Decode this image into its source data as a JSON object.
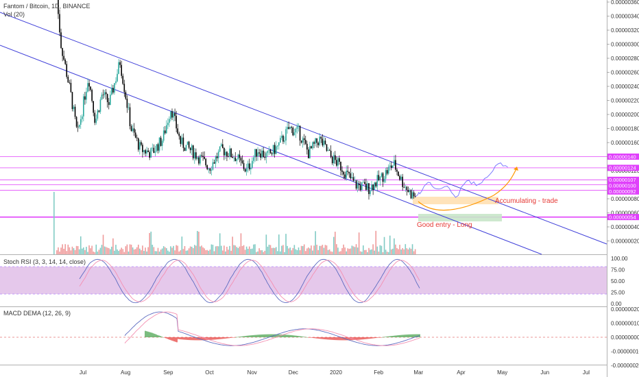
{
  "header": {
    "pair_title": "Fantom / Bitcoin, 1D, BINANCE",
    "vol_label": "Vol (20)"
  },
  "colors": {
    "up": "#26a69a",
    "down": "#000000",
    "channel": "#3f3fd9",
    "level_line": "#e040fb",
    "badge": "#e040fb",
    "annotation": "#e53935",
    "accumulate_box": "#ffe0b2",
    "entry_box": "#c8e6c9",
    "projection": "#7b7bff",
    "curve": "#ff9800",
    "stoch_band": "#e1bee7",
    "stoch_k": "#5c6bc0",
    "stoch_d": "#f48fb1",
    "macd_pos": "#43a047",
    "macd_neg": "#e53935"
  },
  "price_axis": {
    "ticks": [
      "0.00000360",
      "0.00000340",
      "0.00000320",
      "0.00000300",
      "0.00000280",
      "0.00000260",
      "0.00000240",
      "0.00000220",
      "0.00000200",
      "0.00000180",
      "0.00000160",
      "0.00000140",
      "0.00000120",
      "0.00000100",
      "0.00000080",
      "0.00000060",
      "0.00000040",
      "0.00000020"
    ],
    "badges": [
      "0.00000140",
      "0.00000124",
      "0.00000107",
      "0.00000100",
      "0.00000092",
      "0.00000054"
    ]
  },
  "time_axis": {
    "labels": [
      "Jul",
      "Aug",
      "Sep",
      "Oct",
      "Nov",
      "Dec",
      "2020",
      "Feb",
      "Mar",
      "Apr",
      "May",
      "Jun",
      "Jul"
    ]
  },
  "annotations": {
    "accumulating": "Accumulating - trade",
    "good_entry": "Good entry - Long"
  },
  "stoch": {
    "label": "Stoch RSI (3, 3, 14, 14, close)",
    "ticks": [
      "100.00",
      "75.00",
      "50.00",
      "25.00",
      "0.00"
    ]
  },
  "macd": {
    "label": "MACD DEMA (12, 26, 9)",
    "ticks": [
      "0.00000020",
      "0.00000010",
      "0.00000000",
      "-0.00000010",
      "-0.00000020"
    ]
  },
  "chart_data": {
    "type": "candlestick",
    "title": "Fantom / Bitcoin, 1D, BINANCE",
    "symbol": "FTMBTC",
    "interval": "1D",
    "exchange": "BINANCE",
    "price_ylim": [
      1e-07,
      3.65e-06
    ],
    "horizontal_levels": [
      1.4e-06,
      1.24e-06,
      1.07e-06,
      1e-06,
      9.2e-07,
      5.4e-07
    ],
    "descending_channel": true,
    "stoch_bands": [
      20,
      80
    ],
    "price_path": [
      {
        "date": "2019-06-12",
        "close": 3.65e-06
      },
      {
        "date": "2019-06-15",
        "close": 3e-06
      },
      {
        "date": "2019-06-22",
        "close": 2.3e-06
      },
      {
        "date": "2019-06-27",
        "close": 1.7e-06
      },
      {
        "date": "2019-07-05",
        "close": 2.55e-06
      },
      {
        "date": "2019-07-10",
        "close": 1.9e-06
      },
      {
        "date": "2019-07-15",
        "close": 2.3e-06
      },
      {
        "date": "2019-07-20",
        "close": 2.15e-06
      },
      {
        "date": "2019-07-28",
        "close": 2.75e-06
      },
      {
        "date": "2019-08-05",
        "close": 1.8e-06
      },
      {
        "date": "2019-08-12",
        "close": 1.5e-06
      },
      {
        "date": "2019-08-20",
        "close": 1.45e-06
      },
      {
        "date": "2019-08-28",
        "close": 1.65e-06
      },
      {
        "date": "2019-09-03",
        "close": 2.1e-06
      },
      {
        "date": "2019-09-10",
        "close": 1.6e-06
      },
      {
        "date": "2019-09-20",
        "close": 1.45e-06
      },
      {
        "date": "2019-10-01",
        "close": 1.25e-06
      },
      {
        "date": "2019-10-10",
        "close": 1.5e-06
      },
      {
        "date": "2019-10-20",
        "close": 1.4e-06
      },
      {
        "date": "2019-10-28",
        "close": 1.2e-06
      },
      {
        "date": "2019-11-05",
        "close": 1.5e-06
      },
      {
        "date": "2019-11-12",
        "close": 1.4e-06
      },
      {
        "date": "2019-11-20",
        "close": 1.55e-06
      },
      {
        "date": "2019-11-28",
        "close": 1.8e-06
      },
      {
        "date": "2019-12-05",
        "close": 1.75e-06
      },
      {
        "date": "2019-12-12",
        "close": 1.45e-06
      },
      {
        "date": "2019-12-20",
        "close": 1.65e-06
      },
      {
        "date": "2019-12-28",
        "close": 1.4e-06
      },
      {
        "date": "2020-01-05",
        "close": 1.25e-06
      },
      {
        "date": "2020-01-15",
        "close": 1e-06
      },
      {
        "date": "2020-01-25",
        "close": 9.5e-07
      },
      {
        "date": "2020-02-03",
        "close": 1.1e-06
      },
      {
        "date": "2020-02-12",
        "close": 1.3e-06
      },
      {
        "date": "2020-02-18",
        "close": 1.05e-06
      },
      {
        "date": "2020-02-24",
        "close": 8.8e-07
      },
      {
        "date": "2020-02-28",
        "close": 8.2e-07
      }
    ],
    "projection_path": [
      {
        "date": "2020-03-02",
        "value": 9e-07
      },
      {
        "date": "2020-03-08",
        "value": 1.05e-06
      },
      {
        "date": "2020-03-14",
        "value": 9.2e-07
      },
      {
        "date": "2020-03-22",
        "value": 9.8e-07
      },
      {
        "date": "2020-03-28",
        "value": 8e-07
      },
      {
        "date": "2020-04-05",
        "value": 1.08e-06
      },
      {
        "date": "2020-04-12",
        "value": 1e-06
      },
      {
        "date": "2020-04-20",
        "value": 1.1e-06
      },
      {
        "date": "2020-04-28",
        "value": 1.3e-06
      },
      {
        "date": "2020-05-05",
        "value": 1.25e-06
      }
    ]
  }
}
